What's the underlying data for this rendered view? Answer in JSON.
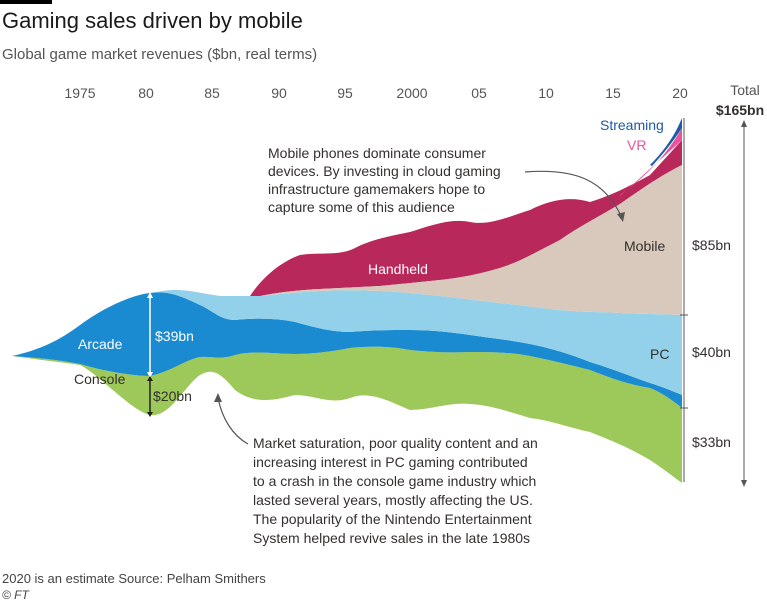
{
  "title": "Gaming sales driven by mobile",
  "subtitle": "Global game market revenues ($bn, real terms)",
  "chart_data": {
    "type": "area",
    "x_ticks": [
      "1975",
      "80",
      "85",
      "90",
      "95",
      "2000",
      "05",
      "10",
      "15",
      "20"
    ],
    "x_range": [
      1971,
      2020
    ],
    "series": [
      {
        "name": "Console",
        "color": "#9dc85a"
      },
      {
        "name": "Arcade",
        "color": "#1a8ad1"
      },
      {
        "name": "PC",
        "color": "#93d0ea"
      },
      {
        "name": "Mobile",
        "color": "#d9c9bc"
      },
      {
        "name": "Handheld",
        "color": "#b8285a"
      },
      {
        "name": "VR",
        "color": "#e8559a"
      },
      {
        "name": "Streaming",
        "color": "#1d5aa8"
      }
    ],
    "total_header": "Total",
    "total_value": "$165bn",
    "values_2020": [
      {
        "series": "Mobile",
        "label": "$85bn",
        "value": 85
      },
      {
        "series": "PC",
        "label": "$40bn",
        "value": 40
      },
      {
        "series": "Console",
        "label": "$33bn",
        "value": 33
      }
    ],
    "peak_annotations": [
      {
        "series": "Arcade",
        "label": "$39bn",
        "value": 39
      },
      {
        "series": "Console",
        "label": "$20bn",
        "value": 20
      }
    ],
    "annotations": [
      {
        "id": "mobile",
        "lines": [
          "Mobile phones dominate consumer",
          "devices. By investing in cloud gaming",
          "infrastructure gamemakers hope to",
          "capture some of this audience"
        ]
      },
      {
        "id": "console",
        "lines": [
          "Market saturation, poor quality content and an",
          "increasing interest in PC gaming contributed",
          "to a crash in the console game industry which",
          "lasted several years, mostly affecting the US.",
          "The popularity of the Nintendo Entertainment",
          "System helped revive sales in the late 1980s"
        ]
      }
    ]
  },
  "footer": {
    "note": "2020 is an estimate   Source: Pelham Smithers",
    "copyright": "© FT"
  }
}
